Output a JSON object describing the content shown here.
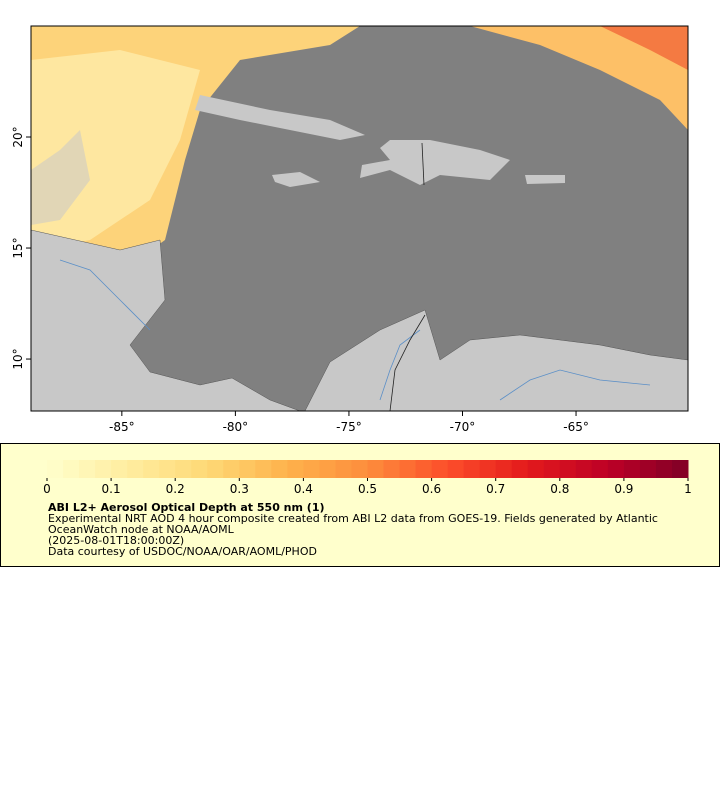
{
  "map": {
    "xlim": [
      -89.0,
      -60.07
    ],
    "ylim": [
      7.66,
      25.0
    ],
    "xticks": [
      {
        "value": -85,
        "label": "-85°"
      },
      {
        "value": -80,
        "label": "-80°"
      },
      {
        "value": -75,
        "label": "-75°"
      },
      {
        "value": -70,
        "label": "-70°"
      },
      {
        "value": -65,
        "label": "-65°"
      }
    ],
    "yticks": [
      {
        "value": 10,
        "label": "10°"
      },
      {
        "value": 15,
        "label": "15°"
      },
      {
        "value": 20,
        "label": "20°"
      }
    ]
  },
  "colorbar": {
    "lim": [
      0,
      1
    ],
    "ticks": [
      0,
      0.1,
      0.2,
      0.3,
      0.4,
      0.5,
      0.6,
      0.7,
      0.8,
      0.9,
      1
    ],
    "colors": [
      "#ffffcc",
      "#ffeda0",
      "#fed976",
      "#feb24c",
      "#fd8d3c",
      "#fc4e2a",
      "#e31a1c",
      "#bd0026",
      "#800026"
    ]
  },
  "legend": {
    "title": "ABI L2+ Aerosol Optical Depth at 550 nm (1)",
    "lines": [
      "Experimental NRT AOD 4 hour composite created from ABI L2 data from GOES-19. Fields generated by Atlantic",
      "OceanWatch node at NOAA/AOML",
      "(2025-08-01T18:00:00Z)",
      "Data courtesy of USDOC/NOAA/OAR/AOML/PHOD"
    ]
  }
}
